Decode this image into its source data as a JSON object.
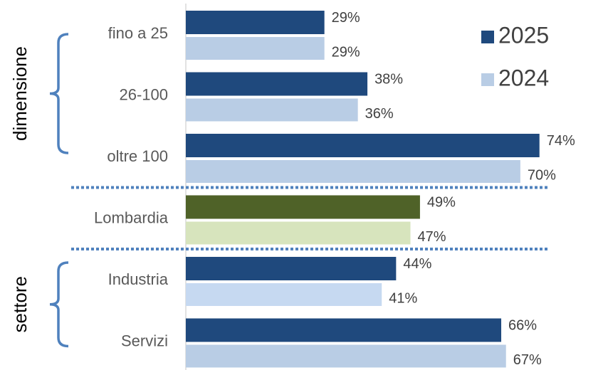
{
  "chart_data": {
    "type": "hbar",
    "categories": [
      "fino a 25",
      "26-100",
      "oltre 100",
      "Lombardia",
      "Industria",
      "Servizi"
    ],
    "series": [
      {
        "name": "2025",
        "color": "#1f497d",
        "colors": [
          "#1f497d",
          "#1f497d",
          "#1f497d",
          "#4f6228",
          "#1f497d",
          "#1f497d"
        ],
        "values": [
          29,
          38,
          74,
          49,
          44,
          66
        ],
        "value_labels": [
          "29%",
          "38%",
          "74%",
          "49%",
          "44%",
          "66%"
        ]
      },
      {
        "name": "2024",
        "color": "#b9cde5",
        "colors": [
          "#b9cde5",
          "#b9cde5",
          "#b9cde5",
          "#d7e4bd",
          "#c6d9f1",
          "#b9cde5"
        ],
        "values": [
          29,
          36,
          70,
          47,
          41,
          67
        ],
        "value_labels": [
          "29%",
          "36%",
          "70%",
          "47%",
          "41%",
          "67%"
        ]
      }
    ],
    "groups": [
      {
        "name": "dimensione",
        "categories": [
          "fino a 25",
          "26-100",
          "oltre 100"
        ]
      },
      {
        "name": "settore",
        "categories": [
          "Industria",
          "Servizi"
        ]
      }
    ],
    "xlim": [
      0,
      80
    ],
    "legend": "top-right"
  }
}
